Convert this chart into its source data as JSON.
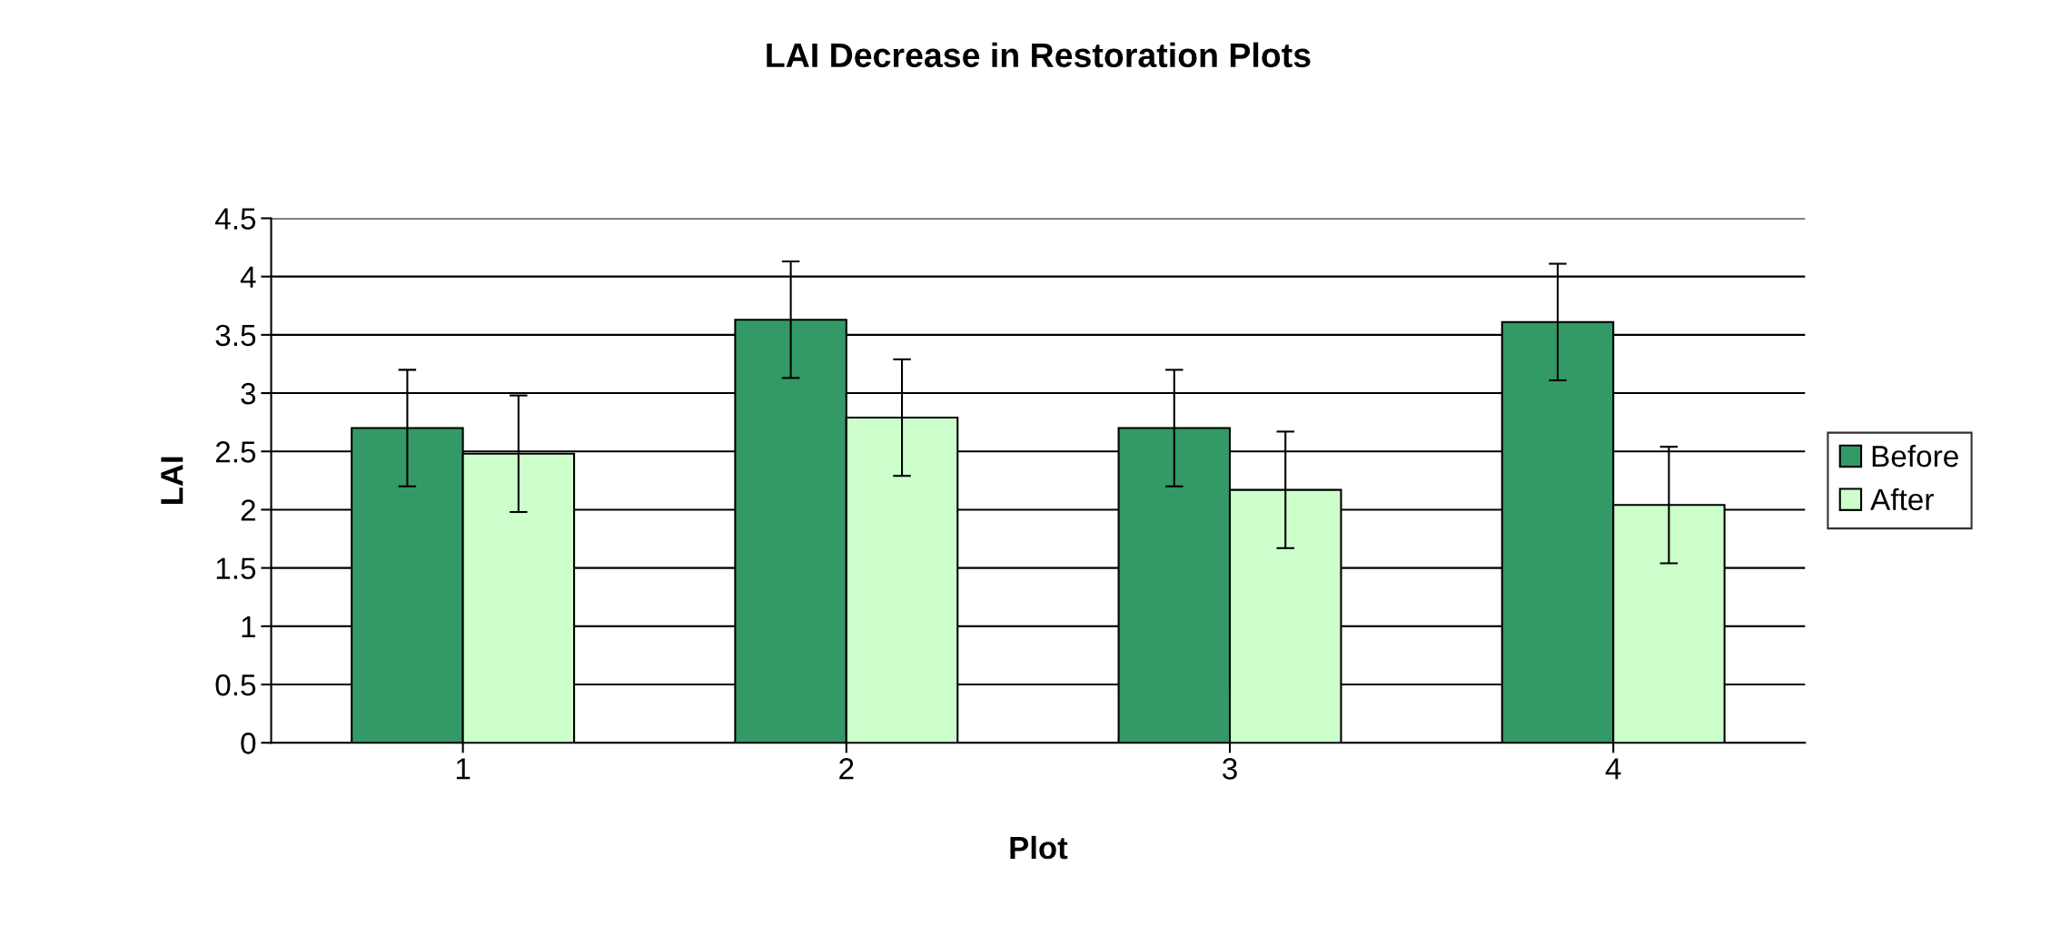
{
  "chart_data": {
    "type": "bar",
    "title": "LAI Decrease in Restoration Plots",
    "xlabel": "Plot",
    "ylabel": "LAI",
    "categories": [
      "1",
      "2",
      "3",
      "4"
    ],
    "series": [
      {
        "name": "Before",
        "color": "#339966",
        "values": [
          2.7,
          3.63,
          2.7,
          3.61
        ],
        "errors": [
          0.5,
          0.5,
          0.5,
          0.5
        ]
      },
      {
        "name": "After",
        "color": "#ccffcc",
        "values": [
          2.48,
          2.79,
          2.17,
          2.04
        ],
        "errors": [
          0.5,
          0.5,
          0.5,
          0.5
        ]
      }
    ],
    "ylim": [
      0,
      4.5
    ],
    "yticks": [
      0,
      0.5,
      1,
      1.5,
      2,
      2.5,
      3,
      3.5,
      4,
      4.5
    ],
    "grid": "y",
    "legend": "right"
  }
}
